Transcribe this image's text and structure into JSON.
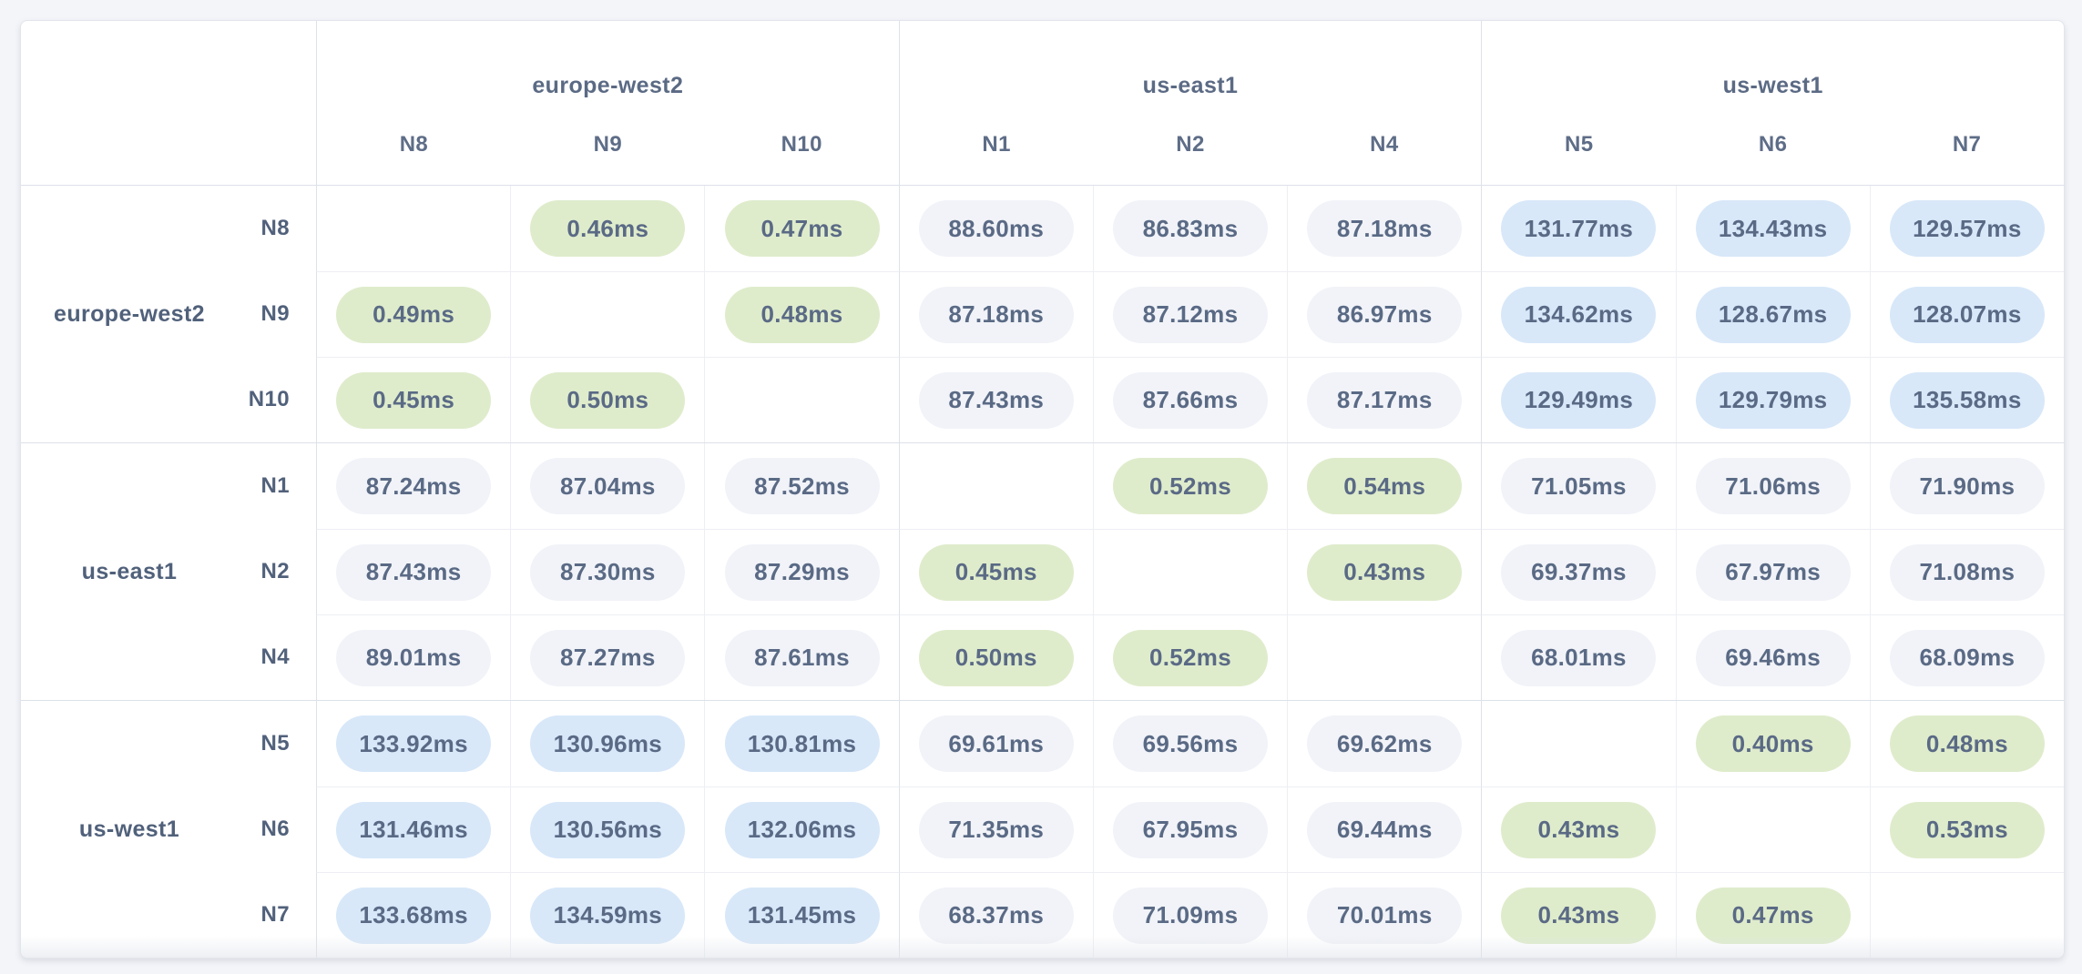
{
  "matrix": {
    "unit": "ms",
    "thresholds": {
      "low_ms": 1,
      "high_ms": 100
    },
    "colors": {
      "low_latency_pill": "#dfeccc",
      "mid_latency_pill": "#f1f3f8",
      "high_latency_pill": "#d8e8f9",
      "value_text": "#5a6a85"
    },
    "column_groups": [
      {
        "region": "europe-west2",
        "nodes": [
          "N8",
          "N9",
          "N10"
        ]
      },
      {
        "region": "us-east1",
        "nodes": [
          "N1",
          "N2",
          "N4"
        ]
      },
      {
        "region": "us-west1",
        "nodes": [
          "N5",
          "N6",
          "N7"
        ]
      }
    ],
    "row_groups": [
      {
        "region": "europe-west2",
        "rows": [
          {
            "node": "N8",
            "cells": [
              null,
              "0.46ms",
              "0.47ms",
              "88.60ms",
              "86.83ms",
              "87.18ms",
              "131.77ms",
              "134.43ms",
              "129.57ms"
            ]
          },
          {
            "node": "N9",
            "cells": [
              "0.49ms",
              null,
              "0.48ms",
              "87.18ms",
              "87.12ms",
              "86.97ms",
              "134.62ms",
              "128.67ms",
              "128.07ms"
            ]
          },
          {
            "node": "N10",
            "cells": [
              "0.45ms",
              "0.50ms",
              null,
              "87.43ms",
              "87.66ms",
              "87.17ms",
              "129.49ms",
              "129.79ms",
              "135.58ms"
            ]
          }
        ]
      },
      {
        "region": "us-east1",
        "rows": [
          {
            "node": "N1",
            "cells": [
              "87.24ms",
              "87.04ms",
              "87.52ms",
              null,
              "0.52ms",
              "0.54ms",
              "71.05ms",
              "71.06ms",
              "71.90ms"
            ]
          },
          {
            "node": "N2",
            "cells": [
              "87.43ms",
              "87.30ms",
              "87.29ms",
              "0.45ms",
              null,
              "0.43ms",
              "69.37ms",
              "67.97ms",
              "71.08ms"
            ]
          },
          {
            "node": "N4",
            "cells": [
              "89.01ms",
              "87.27ms",
              "87.61ms",
              "0.50ms",
              "0.52ms",
              null,
              "68.01ms",
              "69.46ms",
              "68.09ms"
            ]
          }
        ]
      },
      {
        "region": "us-west1",
        "rows": [
          {
            "node": "N5",
            "cells": [
              "133.92ms",
              "130.96ms",
              "130.81ms",
              "69.61ms",
              "69.56ms",
              "69.62ms",
              null,
              "0.40ms",
              "0.48ms"
            ]
          },
          {
            "node": "N6",
            "cells": [
              "131.46ms",
              "130.56ms",
              "132.06ms",
              "71.35ms",
              "67.95ms",
              "69.44ms",
              "0.43ms",
              null,
              "0.53ms"
            ]
          },
          {
            "node": "N7",
            "cells": [
              "133.68ms",
              "134.59ms",
              "131.45ms",
              "68.37ms",
              "71.09ms",
              "70.01ms",
              "0.43ms",
              "0.47ms",
              null
            ]
          }
        ]
      }
    ]
  }
}
